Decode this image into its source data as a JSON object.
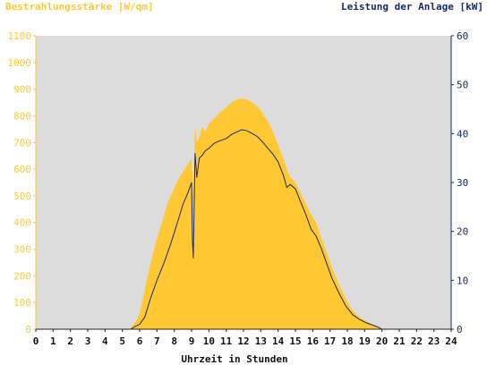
{
  "chart_data": {
    "type": "area",
    "title_left": "Bestrahlungsstärke [W/qm]",
    "title_right": "Leistung der Anlage [kW]",
    "xlabel": "Uhrzeit in Stunden",
    "x_ticks": [
      "0",
      "1",
      "2",
      "3",
      "4",
      "5",
      "6",
      "7",
      "8",
      "9",
      "10",
      "11",
      "12",
      "13",
      "14",
      "15",
      "16",
      "17",
      "18",
      "19",
      "20",
      "21",
      "22",
      "23",
      "24"
    ],
    "xlim": [
      0,
      24
    ],
    "y_left": {
      "label": "Bestrahlungsstärke [W/qm]",
      "lim": [
        0,
        1100
      ],
      "ticks": [
        "0",
        "100",
        "200",
        "300",
        "400",
        "500",
        "600",
        "700",
        "800",
        "900",
        "1000",
        "1100"
      ],
      "color": "#ffc832"
    },
    "y_right": {
      "label": "Leistung der Anlage [kW]",
      "lim": [
        0,
        60
      ],
      "ticks": [
        "0",
        "10",
        "20",
        "30",
        "40",
        "50",
        "60"
      ],
      "color": "#1a2a6a"
    },
    "grid": false,
    "plot_background": "#dcdcdc",
    "series": [
      {
        "name": "Bestrahlungsstärke [W/qm]",
        "axis": "left",
        "kind": "area",
        "color": "#ffc832",
        "x": [
          0,
          5.4,
          5.6,
          5.8,
          6.0,
          6.2,
          6.5,
          6.8,
          7.0,
          7.3,
          7.6,
          8.0,
          8.3,
          8.6,
          8.8,
          9.0,
          9.1,
          9.2,
          9.3,
          9.45,
          9.6,
          9.8,
          10.0,
          10.3,
          10.6,
          11.0,
          11.3,
          11.6,
          11.9,
          12.2,
          12.5,
          12.8,
          13.1,
          13.4,
          13.7,
          14.0,
          14.3,
          14.5,
          14.7,
          15.0,
          15.3,
          15.6,
          15.9,
          16.2,
          16.5,
          16.8,
          17.1,
          17.5,
          17.9,
          18.3,
          18.7,
          19.1,
          19.5,
          19.8,
          20.0,
          20.2,
          24
        ],
        "values": [
          0,
          0,
          15,
          30,
          60,
          120,
          210,
          290,
          340,
          400,
          470,
          530,
          570,
          600,
          620,
          640,
          500,
          760,
          700,
          720,
          760,
          740,
          770,
          790,
          810,
          830,
          850,
          860,
          865,
          860,
          850,
          835,
          810,
          780,
          740,
          690,
          640,
          600,
          570,
          550,
          510,
          470,
          430,
          400,
          340,
          290,
          230,
          170,
          115,
          70,
          45,
          30,
          15,
          8,
          0,
          0,
          0
        ]
      },
      {
        "name": "Leistung der Anlage [kW]",
        "axis": "right",
        "kind": "line",
        "color": "#1a2a6a",
        "x": [
          0,
          5.5,
          5.7,
          6.0,
          6.3,
          6.6,
          7.0,
          7.4,
          7.8,
          8.2,
          8.5,
          8.8,
          9.0,
          9.05,
          9.1,
          9.2,
          9.3,
          9.45,
          9.6,
          9.8,
          10.0,
          10.3,
          10.6,
          11.0,
          11.3,
          11.6,
          11.9,
          12.2,
          12.5,
          12.8,
          13.1,
          13.4,
          13.7,
          14.0,
          14.3,
          14.5,
          14.7,
          15.0,
          15.3,
          15.6,
          15.9,
          16.2,
          16.5,
          16.8,
          17.1,
          17.5,
          17.9,
          18.3,
          18.7,
          19.1,
          19.5,
          19.8,
          20.0,
          20.2,
          24
        ],
        "values": [
          0,
          0,
          0.5,
          1,
          2.5,
          6,
          10,
          13.5,
          17.5,
          22,
          25.5,
          28,
          30,
          18,
          14.5,
          36,
          31,
          35,
          35.5,
          36.5,
          37,
          38,
          38.5,
          39,
          39.8,
          40.3,
          40.8,
          40.6,
          40,
          39.4,
          38.3,
          37,
          35.8,
          34.2,
          31.5,
          29,
          29.6,
          28.7,
          26,
          23.5,
          20.5,
          19,
          16.5,
          13.5,
          10.5,
          7.5,
          4.8,
          3,
          2,
          1.3,
          0.8,
          0.4,
          0,
          0,
          0
        ]
      }
    ]
  }
}
